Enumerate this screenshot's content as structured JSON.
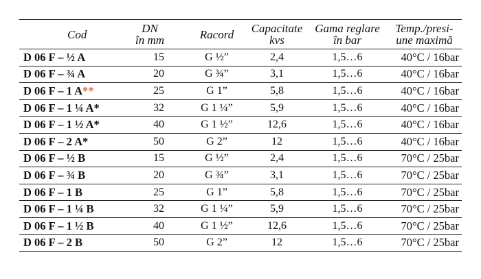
{
  "table": {
    "headers": {
      "cod": [
        "Cod"
      ],
      "dn": [
        "DN",
        "în mm"
      ],
      "racord": [
        "Racord"
      ],
      "capacitate": [
        "Capacitate",
        "kvs"
      ],
      "gama": [
        "Gama reglare",
        "în bar"
      ],
      "temp": [
        "Temp./presi-",
        "une maximă"
      ]
    },
    "rows": [
      {
        "cod": "D 06 F – ½ A",
        "mark": "",
        "dn": "15",
        "racord": "G ½”",
        "kvs": "2,4",
        "gama": "1,5…6",
        "temp": "40°C / 16bar"
      },
      {
        "cod": "D 06 F – ¾ A",
        "mark": "",
        "dn": "20",
        "racord": "G ¾”",
        "kvs": "3,1",
        "gama": "1,5…6",
        "temp": "40°C / 16bar"
      },
      {
        "cod": "D 06 F – 1 A",
        "mark": "**",
        "dn": "25",
        "racord": "G 1”",
        "kvs": "5,8",
        "gama": "1,5…6",
        "temp": "40°C / 16bar"
      },
      {
        "cod": "D 06 F – 1 ¼ A*",
        "mark": "",
        "dn": "32",
        "racord": "G 1 ¼”",
        "kvs": "5,9",
        "gama": "1,5…6",
        "temp": "40°C / 16bar"
      },
      {
        "cod": "D 06 F – 1 ½ A*",
        "mark": "",
        "dn": "40",
        "racord": "G 1 ½”",
        "kvs": "12,6",
        "gama": "1,5…6",
        "temp": "40°C / 16bar"
      },
      {
        "cod": "D 06 F – 2 A*",
        "mark": "",
        "dn": "50",
        "racord": "G 2”",
        "kvs": "12",
        "gama": "1,5…6",
        "temp": "40°C / 16bar"
      },
      {
        "cod": "D 06 F – ½ B",
        "mark": "",
        "dn": "15",
        "racord": "G ½”",
        "kvs": "2,4",
        "gama": "1,5…6",
        "temp": "70°C / 25bar"
      },
      {
        "cod": "D 06 F – ¾ B",
        "mark": "",
        "dn": "20",
        "racord": "G ¾”",
        "kvs": "3,1",
        "gama": "1,5…6",
        "temp": "70°C / 25bar"
      },
      {
        "cod": "D 06 F – 1 B",
        "mark": "",
        "dn": "25",
        "racord": "G 1”",
        "kvs": "5,8",
        "gama": "1,5…6",
        "temp": "70°C / 25bar"
      },
      {
        "cod": "D 06 F – 1 ¼ B",
        "mark": "",
        "dn": "32",
        "racord": "G 1 ¼”",
        "kvs": "5,9",
        "gama": "1,5…6",
        "temp": "70°C / 25bar"
      },
      {
        "cod": "D 06 F – 1 ½ B",
        "mark": "",
        "dn": "40",
        "racord": "G 1 ½”",
        "kvs": "12,6",
        "gama": "1,5…6",
        "temp": "70°C / 25bar"
      },
      {
        "cod": "D 06 F – 2 B",
        "mark": "",
        "dn": "50",
        "racord": "G 2”",
        "kvs": "12",
        "gama": "1,5…6",
        "temp": "70°C / 25bar"
      }
    ]
  },
  "colors": {
    "text": "#111111",
    "footnote_mark": "#e0693a",
    "rule": "#222222"
  }
}
